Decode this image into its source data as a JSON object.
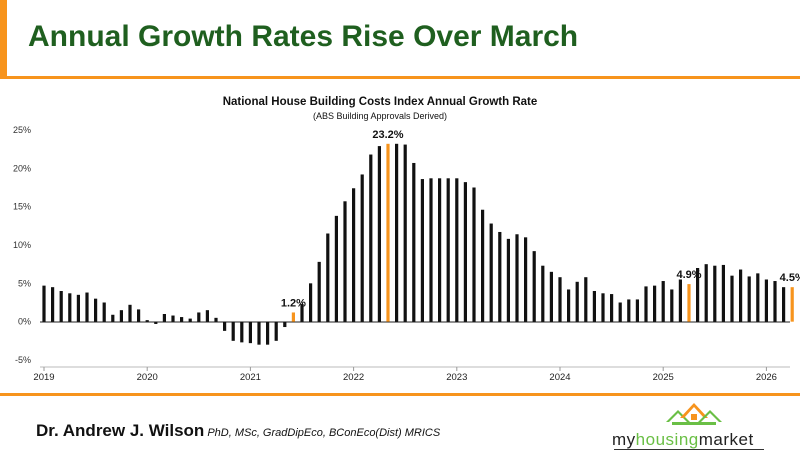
{
  "header": {
    "title": "Annual Growth Rates Rise Over March"
  },
  "chart_data": {
    "type": "bar",
    "title": "National House Building Costs Index Annual Growth Rate",
    "subtitle": "(ABS Building Approvals Derived)",
    "y_ticks": [
      "25%",
      "20%",
      "15%",
      "10%",
      "5%",
      "0%",
      "-5%"
    ],
    "y_tick_values": [
      25,
      20,
      15,
      10,
      5,
      0,
      -5
    ],
    "ylim": [
      -5,
      25
    ],
    "x_tick_labels": [
      "2019",
      "2020",
      "2021",
      "2022",
      "2023",
      "2024",
      "2025",
      "2026"
    ],
    "x_tick_positions": [
      0,
      12,
      24,
      36,
      48,
      60,
      72,
      84
    ],
    "grid": false,
    "values": [
      4.7,
      4.5,
      4.0,
      3.7,
      3.5,
      3.8,
      3.0,
      2.5,
      0.9,
      1.5,
      2.2,
      1.6,
      0.2,
      -0.3,
      1.0,
      0.8,
      0.6,
      0.4,
      1.2,
      1.5,
      0.5,
      -1.2,
      -2.5,
      -2.7,
      -2.8,
      -3.0,
      -3.0,
      -2.5,
      -0.7,
      1.2,
      2.3,
      5.0,
      7.8,
      11.5,
      13.8,
      15.7,
      17.4,
      19.2,
      21.8,
      22.9,
      23.2,
      23.2,
      23.1,
      20.7,
      18.6,
      18.7,
      18.7,
      18.7,
      18.7,
      18.2,
      17.5,
      14.6,
      12.8,
      11.7,
      10.8,
      11.4,
      11.0,
      9.2,
      7.3,
      6.5,
      5.8,
      4.2,
      5.2,
      5.8,
      4.0,
      3.7,
      3.6,
      2.5,
      2.9,
      2.9,
      4.6,
      4.7,
      5.3,
      4.2,
      5.5,
      4.9,
      7.0,
      7.5,
      7.3,
      7.4,
      6.0,
      6.8,
      5.9,
      6.3,
      5.5,
      5.3,
      4.5,
      4.5
    ],
    "highlight_indices": [
      29,
      40,
      75,
      87
    ],
    "annotations": [
      {
        "index": 29,
        "label": "1.2%"
      },
      {
        "index": 40,
        "label": "23.2%"
      },
      {
        "index": 75,
        "label": "4.9%"
      },
      {
        "index": 87,
        "label": "4.5%"
      }
    ],
    "colors": {
      "bar": "#111111",
      "highlight": "#f7941d"
    }
  },
  "footer": {
    "author_name": "Dr. Andrew J. Wilson",
    "author_quals": "PhD, MSc, GradDipEco, BConEco(Dist) MRICS",
    "logo_my": "my",
    "logo_housing": "housing",
    "logo_market": "market",
    "logo_icon": "house-roofs-icon"
  },
  "colors": {
    "accent": "#f7941d",
    "title_green": "#1f5f1f",
    "logo_green": "#6abf45"
  }
}
